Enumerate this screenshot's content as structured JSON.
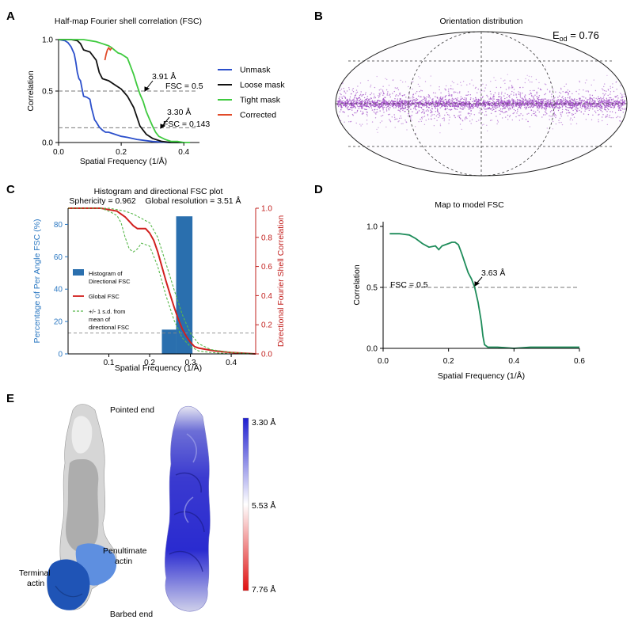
{
  "panel_labels": {
    "a": "A",
    "b": "B",
    "c": "C",
    "d": "D",
    "e": "E"
  },
  "chart_data": [
    {
      "id": "A",
      "type": "line",
      "title": "Half-map Fourier shell correlation (FSC)",
      "xlabel": "Spatial Frequency (1/Å)",
      "ylabel": "Correlation",
      "xlim": [
        0,
        0.45
      ],
      "ylim": [
        0,
        1.0
      ],
      "xticks": [
        "0.0",
        "0.2",
        "0.4"
      ],
      "yticks": [
        "0.0",
        "0.5",
        "1.0"
      ],
      "thresholds": [
        {
          "label": "FSC = 0.5",
          "y": 0.5
        },
        {
          "label": "FSC = 0.143",
          "y": 0.143
        }
      ],
      "annotations": [
        {
          "label": "3.91 Å",
          "x": 0.256,
          "y": 0.5
        },
        {
          "label": "3.30 Å",
          "x": 0.303,
          "y": 0.143
        }
      ],
      "legend_position": "right",
      "series": [
        {
          "name": "Unmask",
          "color": "#2b4fcb",
          "x": [
            0,
            0.02,
            0.03,
            0.04,
            0.05,
            0.055,
            0.06,
            0.065,
            0.07,
            0.075,
            0.08,
            0.09,
            0.1,
            0.105,
            0.11,
            0.115,
            0.12,
            0.13,
            0.14,
            0.15,
            0.16,
            0.18,
            0.2,
            0.22,
            0.25,
            0.3,
            0.35,
            0.4
          ],
          "y": [
            1.0,
            0.99,
            0.97,
            0.93,
            0.86,
            0.78,
            0.68,
            0.62,
            0.6,
            0.52,
            0.45,
            0.44,
            0.42,
            0.34,
            0.28,
            0.22,
            0.2,
            0.15,
            0.12,
            0.1,
            0.1,
            0.08,
            0.06,
            0.05,
            0.03,
            0.01,
            0.0,
            0.0
          ]
        },
        {
          "name": "Loose mask",
          "color": "#111111",
          "x": [
            0,
            0.04,
            0.06,
            0.07,
            0.08,
            0.1,
            0.12,
            0.13,
            0.14,
            0.16,
            0.18,
            0.2,
            0.22,
            0.24,
            0.25,
            0.26,
            0.28,
            0.3,
            0.33,
            0.36,
            0.4
          ],
          "y": [
            1.0,
            1.0,
            0.99,
            0.96,
            0.9,
            0.88,
            0.8,
            0.68,
            0.62,
            0.6,
            0.56,
            0.52,
            0.45,
            0.34,
            0.25,
            0.16,
            0.08,
            0.04,
            0.01,
            0.0,
            0.0
          ]
        },
        {
          "name": "Tight mask",
          "color": "#3fca3f",
          "x": [
            0,
            0.08,
            0.1,
            0.12,
            0.14,
            0.15,
            0.16,
            0.17,
            0.19,
            0.2,
            0.22,
            0.23,
            0.24,
            0.25,
            0.26,
            0.27,
            0.28,
            0.29,
            0.3,
            0.31,
            0.32,
            0.34,
            0.36,
            0.38,
            0.4,
            0.42
          ],
          "y": [
            1.0,
            1.0,
            0.99,
            0.98,
            0.96,
            0.95,
            0.94,
            0.92,
            0.87,
            0.86,
            0.82,
            0.74,
            0.66,
            0.56,
            0.47,
            0.4,
            0.3,
            0.23,
            0.16,
            0.1,
            0.06,
            0.03,
            0.01,
            0.01,
            0.0,
            0.0
          ]
        },
        {
          "name": "Corrected",
          "color": "#e14b2a",
          "x": [
            0.148,
            0.152,
            0.156,
            0.16,
            0.165,
            0.17
          ],
          "y": [
            0.8,
            0.86,
            0.9,
            0.92,
            0.9,
            0.92
          ]
        }
      ]
    },
    {
      "id": "B",
      "type": "scatter",
      "title": "Orientation distribution",
      "statistic": {
        "prefix": "E",
        "subscript": "od",
        "value": " = 0.76"
      }
    },
    {
      "id": "C",
      "type": "bar",
      "title": "Histogram and directional FSC plot",
      "subtitle": "Sphericity = 0.962    Global resolution = 3.51 Å",
      "xlabel": "Spatial Frequency (1/Å)",
      "ylabel_left": "Percentage of Per Angle FSC (%)",
      "ylabel_right": "Directional Fourier Shell Correlation",
      "xlim": [
        0,
        0.46
      ],
      "ylim_left": [
        0,
        90
      ],
      "ylim_right": [
        0,
        1.0
      ],
      "xticks": [
        "0.1",
        "0.2",
        "0.3",
        "0.4"
      ],
      "yticks_left": [
        "0",
        "20",
        "40",
        "60",
        "80"
      ],
      "yticks_right": [
        "0.0",
        "0.2",
        "0.4",
        "0.6",
        "0.8",
        "1.0"
      ],
      "threshold_right": 0.143,
      "bars": [
        {
          "x0": 0.23,
          "x1": 0.265,
          "value": 15
        },
        {
          "x0": 0.265,
          "x1": 0.305,
          "value": 85
        }
      ],
      "legend": [
        {
          "name": "Histogram of Directional FSC",
          "lines": [
            "Histogram of",
            "Directional FSC"
          ],
          "color": "#2a6fae",
          "kind": "box"
        },
        {
          "name": "Global FSC",
          "lines": [
            "Global FSC"
          ],
          "color": "#d1201e",
          "kind": "line"
        },
        {
          "name": "+/- 1 s.d. from mean of directional FSC",
          "lines": [
            "+/- 1 s.d. from",
            "mean of",
            "directional FSC"
          ],
          "color": "#58b84b",
          "kind": "dashed"
        }
      ],
      "series": [
        {
          "name": "Global FSC",
          "color": "#d1201e",
          "x": [
            0,
            0.08,
            0.1,
            0.12,
            0.13,
            0.14,
            0.15,
            0.16,
            0.17,
            0.18,
            0.19,
            0.2,
            0.21,
            0.22,
            0.23,
            0.24,
            0.25,
            0.26,
            0.27,
            0.28,
            0.29,
            0.3,
            0.31,
            0.32,
            0.34,
            0.36,
            0.4,
            0.46
          ],
          "y": [
            1.0,
            1.0,
            0.99,
            0.98,
            0.96,
            0.94,
            0.91,
            0.88,
            0.86,
            0.86,
            0.86,
            0.83,
            0.78,
            0.7,
            0.6,
            0.5,
            0.41,
            0.32,
            0.24,
            0.17,
            0.12,
            0.08,
            0.05,
            0.04,
            0.03,
            0.02,
            0.01,
            0.0
          ]
        },
        {
          "name": "+1 s.d.",
          "color": "#58b84b",
          "dashed": true,
          "x": [
            0,
            0.08,
            0.1,
            0.12,
            0.14,
            0.16,
            0.18,
            0.2,
            0.22,
            0.24,
            0.26,
            0.28,
            0.3,
            0.32,
            0.35,
            0.4,
            0.46
          ],
          "y": [
            1.0,
            1.0,
            1.0,
            0.99,
            0.98,
            0.96,
            0.93,
            0.9,
            0.8,
            0.62,
            0.44,
            0.27,
            0.14,
            0.07,
            0.03,
            0.01,
            0.0
          ]
        },
        {
          "name": "-1 s.d.",
          "color": "#58b84b",
          "dashed": true,
          "x": [
            0,
            0.08,
            0.1,
            0.12,
            0.13,
            0.14,
            0.15,
            0.16,
            0.17,
            0.18,
            0.2,
            0.22,
            0.24,
            0.26,
            0.28,
            0.3,
            0.32,
            0.35,
            0.4,
            0.46
          ],
          "y": [
            1.0,
            1.0,
            0.98,
            0.95,
            0.9,
            0.8,
            0.72,
            0.7,
            0.72,
            0.76,
            0.74,
            0.6,
            0.4,
            0.23,
            0.11,
            0.05,
            0.02,
            0.01,
            0.0,
            0.0
          ]
        }
      ]
    },
    {
      "id": "D",
      "type": "line",
      "title": "Map to model FSC",
      "xlabel": "Spatial Frequency (1/Å)",
      "ylabel": "Correlation",
      "xlim": [
        0,
        0.6
      ],
      "ylim": [
        0,
        1.0
      ],
      "xticks": [
        "0.0",
        "0.2",
        "0.4",
        "0.6"
      ],
      "yticks": [
        "0.0",
        "0.5",
        "1.0"
      ],
      "threshold": {
        "label": "FSC = 0.5",
        "y": 0.5
      },
      "annotation": {
        "label": "3.63 Å",
        "x": 0.276,
        "y": 0.5
      },
      "series": [
        {
          "name": "Map to model FSC",
          "color": "#1e8c5a",
          "x": [
            0.02,
            0.05,
            0.08,
            0.1,
            0.12,
            0.14,
            0.16,
            0.17,
            0.18,
            0.19,
            0.2,
            0.21,
            0.22,
            0.23,
            0.24,
            0.25,
            0.26,
            0.27,
            0.28,
            0.29,
            0.3,
            0.305,
            0.31,
            0.32,
            0.35,
            0.4,
            0.45,
            0.5,
            0.55,
            0.6
          ],
          "y": [
            0.94,
            0.94,
            0.93,
            0.9,
            0.86,
            0.83,
            0.84,
            0.81,
            0.84,
            0.85,
            0.86,
            0.87,
            0.87,
            0.85,
            0.78,
            0.7,
            0.62,
            0.57,
            0.5,
            0.38,
            0.22,
            0.1,
            0.03,
            0.01,
            0.01,
            0.0,
            0.01,
            0.01,
            0.01,
            0.01
          ]
        }
      ]
    }
  ],
  "panel_e": {
    "top_label": "Pointed end",
    "bottom_label": "Barbed end",
    "terminal_label": [
      "Terminal",
      "actin"
    ],
    "penultimate_label": [
      "Penultimate",
      "actin"
    ],
    "colorbar": {
      "top": "3.30 Å",
      "mid": "5.53 Å",
      "bottom": "7.76 Å",
      "colors": [
        "#1f1fd0",
        "#ffffff",
        "#e01010"
      ]
    }
  }
}
